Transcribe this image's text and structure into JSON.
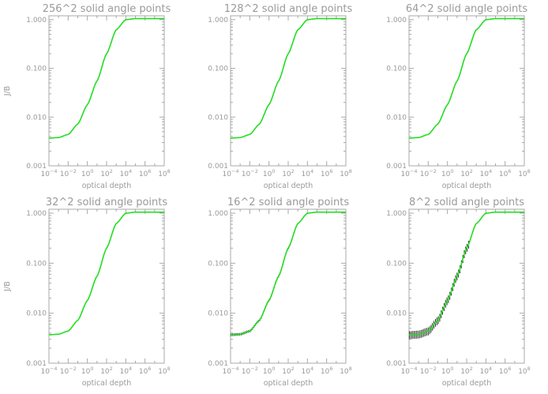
{
  "chart_data": [
    {
      "type": "line",
      "title": "256^2 solid angle points",
      "xlabel": "optical depth",
      "ylabel": "J/B",
      "xscale": "log",
      "yscale": "log",
      "xlim": [
        0.0001,
        100000000
      ],
      "ylim": [
        0.001,
        1.2
      ],
      "x_ticks": [
        "10^-4",
        "10^-2",
        "10^0",
        "10^2",
        "10^4",
        "10^6",
        "10^8"
      ],
      "y_ticks": [
        "0.001",
        "0.010",
        "0.100",
        "1.000"
      ],
      "series_color": "#22dd22",
      "error_bar_color": "#000000",
      "series": [
        {
          "x": [
            0.0001,
            0.001,
            0.01,
            0.1,
            1,
            10,
            100,
            1000,
            10000,
            100000,
            1000000,
            10000000,
            100000000
          ],
          "y": [
            0.0037,
            0.0038,
            0.0044,
            0.0072,
            0.018,
            0.055,
            0.2,
            0.62,
            1.0,
            1.05,
            1.05,
            1.05,
            1.05
          ]
        }
      ],
      "error_bars": false
    },
    {
      "type": "line",
      "title": "128^2 solid angle points",
      "xlabel": "optical depth",
      "ylabel": "",
      "xscale": "log",
      "yscale": "log",
      "xlim": [
        0.0001,
        100000000
      ],
      "ylim": [
        0.001,
        1.2
      ],
      "x_ticks": [
        "10^-4",
        "10^-2",
        "10^0",
        "10^2",
        "10^4",
        "10^6",
        "10^8"
      ],
      "y_ticks": [
        "0.001",
        "0.010",
        "0.100",
        "1.000"
      ],
      "series_color": "#22dd22",
      "error_bar_color": "#000000",
      "series": [
        {
          "x": [
            0.0001,
            0.001,
            0.01,
            0.1,
            1,
            10,
            100,
            1000,
            10000,
            100000,
            1000000,
            10000000,
            100000000
          ],
          "y": [
            0.0037,
            0.0038,
            0.0044,
            0.0072,
            0.018,
            0.055,
            0.2,
            0.62,
            1.0,
            1.05,
            1.05,
            1.05,
            1.05
          ]
        }
      ],
      "error_bars": false
    },
    {
      "type": "line",
      "title": "64^2 solid angle points",
      "xlabel": "optical depth",
      "ylabel": "",
      "xscale": "log",
      "yscale": "log",
      "xlim": [
        0.0001,
        100000000
      ],
      "ylim": [
        0.001,
        1.2
      ],
      "x_ticks": [
        "10^-4",
        "10^-2",
        "10^0",
        "10^2",
        "10^4",
        "10^6",
        "10^8"
      ],
      "y_ticks": [
        "0.001",
        "0.010",
        "0.100",
        "1.000"
      ],
      "series_color": "#22dd22",
      "error_bar_color": "#000000",
      "series": [
        {
          "x": [
            0.0001,
            0.001,
            0.01,
            0.1,
            1,
            10,
            100,
            1000,
            10000,
            100000,
            1000000,
            10000000,
            100000000
          ],
          "y": [
            0.0037,
            0.0038,
            0.0044,
            0.0072,
            0.018,
            0.055,
            0.2,
            0.62,
            1.0,
            1.05,
            1.05,
            1.05,
            1.05
          ]
        }
      ],
      "error_bars": false
    },
    {
      "type": "line",
      "title": "32^2 solid angle points",
      "xlabel": "optical depth",
      "ylabel": "J/B",
      "xscale": "log",
      "yscale": "log",
      "xlim": [
        0.0001,
        100000000
      ],
      "ylim": [
        0.001,
        1.2
      ],
      "x_ticks": [
        "10^-4",
        "10^-2",
        "10^0",
        "10^2",
        "10^4",
        "10^6",
        "10^8"
      ],
      "y_ticks": [
        "0.001",
        "0.010",
        "0.100",
        "1.000"
      ],
      "series_color": "#22dd22",
      "error_bar_color": "#000000",
      "series": [
        {
          "x": [
            0.0001,
            0.001,
            0.01,
            0.1,
            1,
            10,
            100,
            1000,
            10000,
            100000,
            1000000,
            10000000,
            100000000
          ],
          "y": [
            0.0037,
            0.0038,
            0.0044,
            0.0072,
            0.018,
            0.055,
            0.2,
            0.62,
            1.0,
            1.05,
            1.05,
            1.05,
            1.05
          ]
        }
      ],
      "error_bars": false
    },
    {
      "type": "line",
      "title": "16^2 solid angle points",
      "xlabel": "optical depth",
      "ylabel": "",
      "xscale": "log",
      "yscale": "log",
      "xlim": [
        0.0001,
        100000000
      ],
      "ylim": [
        0.001,
        1.2
      ],
      "x_ticks": [
        "10^-4",
        "10^-2",
        "10^0",
        "10^2",
        "10^4",
        "10^6",
        "10^8"
      ],
      "y_ticks": [
        "0.001",
        "0.010",
        "0.100",
        "1.000"
      ],
      "series_color": "#22dd22",
      "error_bar_color": "#000000",
      "series": [
        {
          "x": [
            0.0001,
            0.001,
            0.01,
            0.1,
            1,
            10,
            100,
            1000,
            10000,
            100000,
            1000000,
            10000000,
            100000000
          ],
          "y": [
            0.0037,
            0.0038,
            0.0044,
            0.0072,
            0.018,
            0.055,
            0.2,
            0.62,
            1.0,
            1.05,
            1.05,
            1.05,
            1.05
          ]
        }
      ],
      "error_bars": true,
      "error_bar_fraction": 0.06
    },
    {
      "type": "line",
      "title": "8^2 solid angle points",
      "xlabel": "optical depth",
      "ylabel": "",
      "xscale": "log",
      "yscale": "log",
      "xlim": [
        0.0001,
        100000000
      ],
      "ylim": [
        0.001,
        1.2
      ],
      "x_ticks": [
        "10^-4",
        "10^-2",
        "10^0",
        "10^2",
        "10^4",
        "10^6",
        "10^8"
      ],
      "y_ticks": [
        "0.001",
        "0.010",
        "0.100",
        "1.000"
      ],
      "series_color": "#22dd22",
      "error_bar_color": "#000000",
      "series": [
        {
          "x": [
            0.0001,
            0.001,
            0.01,
            0.1,
            1,
            10,
            100,
            1000,
            10000,
            100000,
            1000000,
            10000000,
            100000000
          ],
          "y": [
            0.0037,
            0.0038,
            0.0044,
            0.0072,
            0.018,
            0.055,
            0.2,
            0.62,
            1.0,
            1.05,
            1.05,
            1.05,
            1.05
          ]
        }
      ],
      "error_bars": true,
      "error_bar_fraction": 0.18
    }
  ]
}
